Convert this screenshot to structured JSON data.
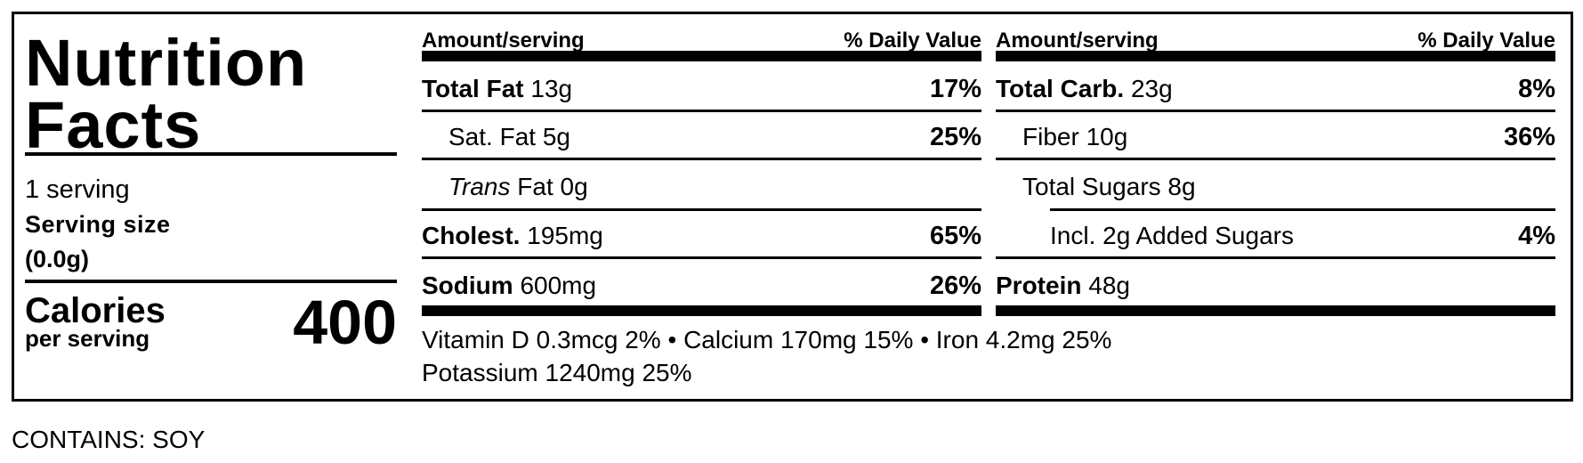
{
  "title_line1": "Nutrition",
  "title_line2": "Facts",
  "servings": "1 serving",
  "serving_size_label": "Serving size",
  "serving_size_value": "(0.0g)",
  "calories_label": "Calories",
  "calories_sub": "per serving",
  "calories_value": "400",
  "columns": [
    {
      "header_amount": "Amount/serving",
      "header_dv": "% Daily Value",
      "rows": [
        {
          "name": "Total Fat",
          "amount": "13g",
          "dv": "17%"
        },
        {
          "name": "Sat. Fat",
          "amount": "5g",
          "dv": "25%"
        },
        {
          "name_italic": "Trans",
          "name": "Fat",
          "amount": "0g",
          "dv": ""
        },
        {
          "name": "Cholest.",
          "amount": "195mg",
          "dv": "65%"
        },
        {
          "name": "Sodium",
          "amount": "600mg",
          "dv": "26%"
        }
      ]
    },
    {
      "header_amount": "Amount/serving",
      "header_dv": "% Daily Value",
      "rows": [
        {
          "name": "Total Carb.",
          "amount": "23g",
          "dv": "8%"
        },
        {
          "name": "Fiber",
          "amount": "10g",
          "dv": "36%"
        },
        {
          "name": "Total Sugars",
          "amount": "8g",
          "dv": ""
        },
        {
          "name": "Incl. 2g Added Sugars",
          "amount": "",
          "dv": "4%"
        },
        {
          "name": "Protein",
          "amount": "48g",
          "dv": ""
        }
      ]
    }
  ],
  "micros_line1": "Vitamin D 0.3mcg 2% • Calcium 170mg 15% • Iron 4.2mg 25%",
  "micros_line2": "Potassium 1240mg 25%",
  "allergens": "CONTAINS: SOY"
}
